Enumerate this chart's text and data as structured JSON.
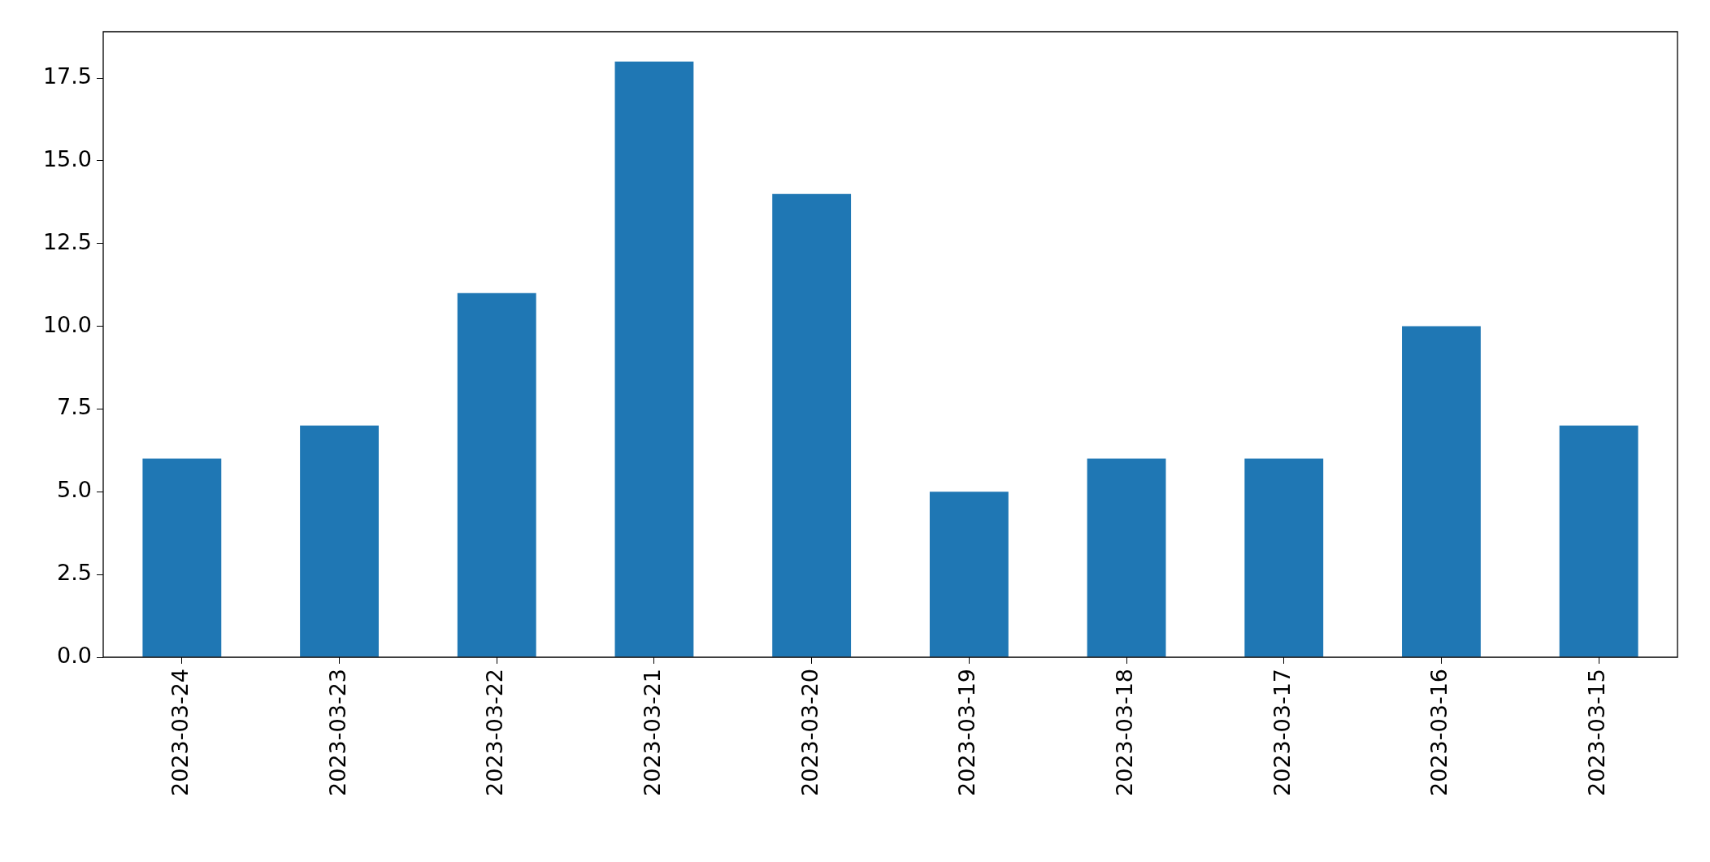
{
  "chart_data": {
    "type": "bar",
    "categories": [
      "2023-03-24",
      "2023-03-23",
      "2023-03-22",
      "2023-03-21",
      "2023-03-20",
      "2023-03-19",
      "2023-03-18",
      "2023-03-17",
      "2023-03-16",
      "2023-03-15"
    ],
    "values": [
      6,
      7,
      11,
      18,
      14,
      5,
      6,
      6,
      10,
      7
    ],
    "color": "#1f77b4",
    "ylim": [
      0,
      18.9
    ],
    "yticks": [
      {
        "value": 0,
        "label": "0.0"
      },
      {
        "value": 2.5,
        "label": "2.5"
      },
      {
        "value": 5,
        "label": "5.0"
      },
      {
        "value": 7.5,
        "label": "7.5"
      },
      {
        "value": 10,
        "label": "10.0"
      },
      {
        "value": 12.5,
        "label": "12.5"
      },
      {
        "value": 15,
        "label": "15.0"
      },
      {
        "value": 17.5,
        "label": "17.5"
      }
    ]
  }
}
